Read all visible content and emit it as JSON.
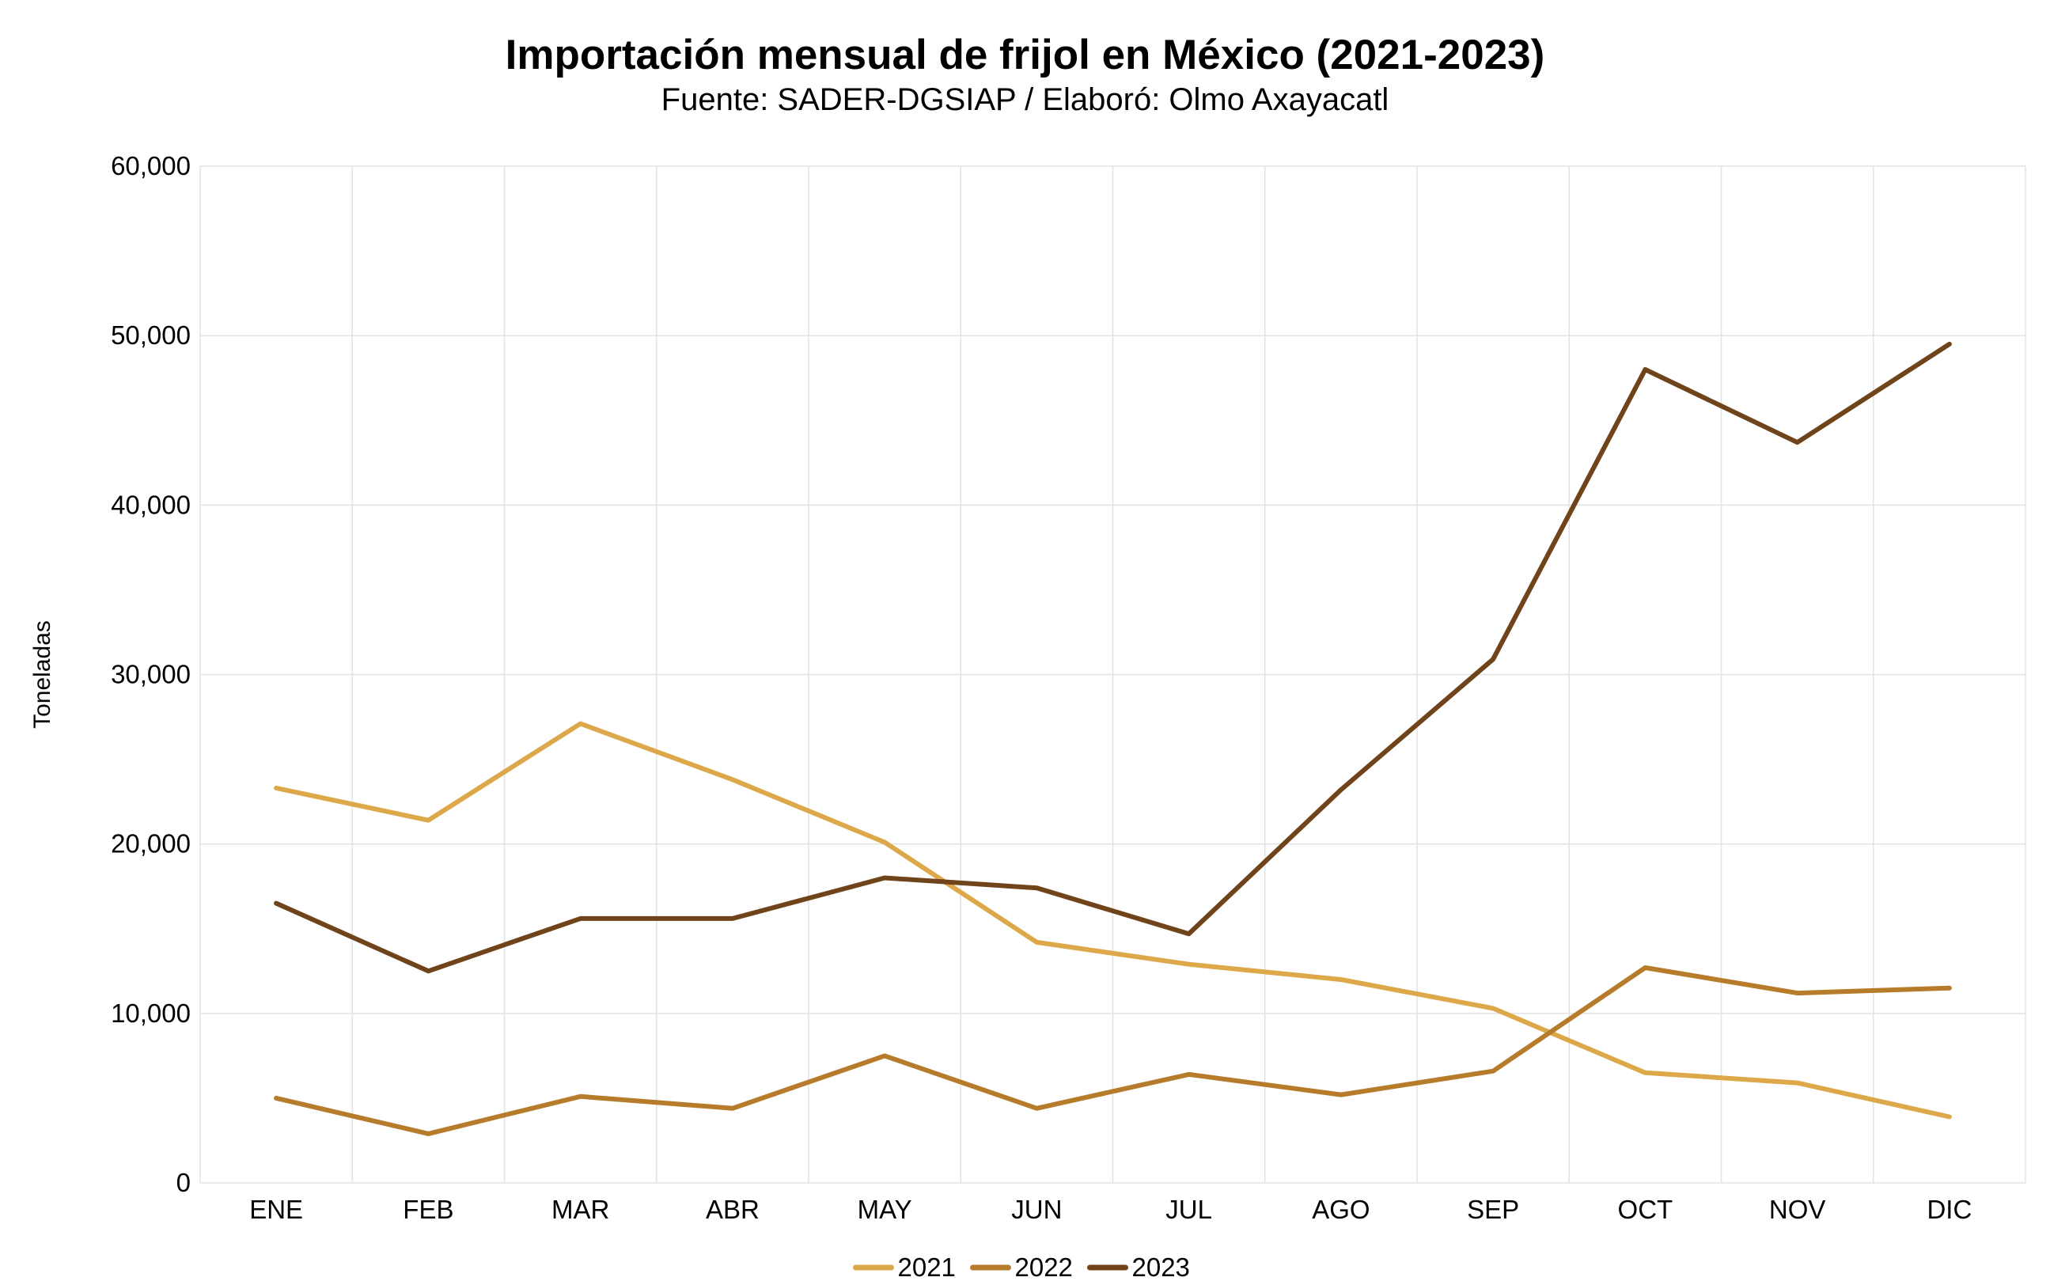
{
  "chart_data": {
    "type": "line",
    "title": "Importación mensual de frijol en México (2021-2023)",
    "subtitle": "Fuente: SADER-DGSIAP / Elaboró: Olmo Axayacatl",
    "xlabel": "",
    "ylabel": "Toneladas",
    "ylim": [
      0,
      60000
    ],
    "yticks": [
      0,
      10000,
      20000,
      30000,
      40000,
      50000,
      60000
    ],
    "grid": true,
    "legend_position": "bottom",
    "categories": [
      "ENE",
      "FEB",
      "MAR",
      "ABR",
      "MAY",
      "JUN",
      "JUL",
      "AGO",
      "SEP",
      "OCT",
      "NOV",
      "DIC"
    ],
    "series": [
      {
        "name": "2021",
        "color": "#DDA84A",
        "values": [
          23300,
          21400,
          27100,
          23800,
          20100,
          14200,
          12900,
          12000,
          10300,
          6500,
          5900,
          3900
        ]
      },
      {
        "name": "2022",
        "color": "#B77B2C",
        "values": [
          5000,
          2900,
          5100,
          4400,
          7500,
          4400,
          6400,
          5200,
          6600,
          12700,
          11200,
          11500
        ]
      },
      {
        "name": "2023",
        "color": "#70441A",
        "values": [
          16500,
          12500,
          15600,
          15600,
          18000,
          17400,
          14700,
          23200,
          30900,
          48000,
          43700,
          49500
        ]
      }
    ]
  }
}
